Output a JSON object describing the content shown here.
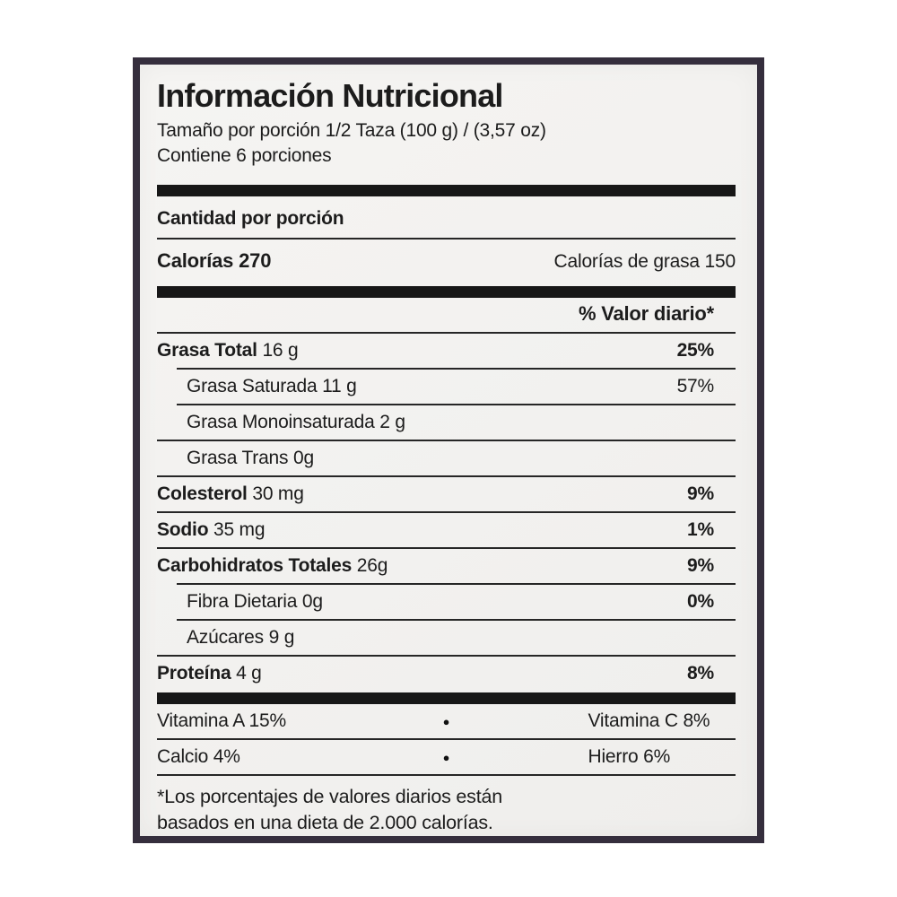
{
  "label": {
    "title": "Información Nutricional",
    "serving_size": "Tamaño por porción 1/2 Taza (100 g) / (3,57 oz)",
    "servings_per_container": "Contiene 6 porciones",
    "amount_per_serving": "Cantidad por porción",
    "calories_label": "Calorías",
    "calories_value": "270",
    "calories_from_fat_label": "Calorías de grasa",
    "calories_from_fat_value": "150",
    "daily_value_header": "% Valor diario*",
    "nutrients": [
      {
        "name": "Grasa Total",
        "amount": "16 g",
        "daily_value": "25%"
      },
      {
        "name": "Grasa Saturada",
        "amount": "11 g",
        "daily_value": "57%"
      },
      {
        "name": "Grasa Monoinsaturada",
        "amount": "2 g",
        "daily_value": ""
      },
      {
        "name": "Grasa Trans",
        "amount": "0g",
        "daily_value": ""
      },
      {
        "name": "Colesterol",
        "amount": "30 mg",
        "daily_value": "9%"
      },
      {
        "name": "Sodio",
        "amount": "35 mg",
        "daily_value": "1%"
      },
      {
        "name": "Carbohidratos Totales",
        "amount": "26g",
        "daily_value": "9%"
      },
      {
        "name": "Fibra Dietaria",
        "amount": "0g",
        "daily_value": "0%"
      },
      {
        "name": "Azúcares",
        "amount": "9 g",
        "daily_value": ""
      },
      {
        "name": "Proteína",
        "amount": "4 g",
        "daily_value": "8%"
      }
    ],
    "micronutrients": [
      {
        "left": "Vitamina A 15%",
        "right": "Vitamina C 8%"
      },
      {
        "left": "Calcio 4%",
        "right": "Hierro 6%"
      }
    ],
    "bullet_glyph": "●",
    "footnote_line1": "*Los porcentajes de valores diarios están",
    "footnote_line2": "basados en una dieta de 2.000 calorías."
  },
  "colors": {
    "page_background": "#ffffff",
    "label_background": "#f2f1ef",
    "label_border": "#352e3d",
    "ink": "#1c1c1c",
    "divider": "#262626"
  }
}
